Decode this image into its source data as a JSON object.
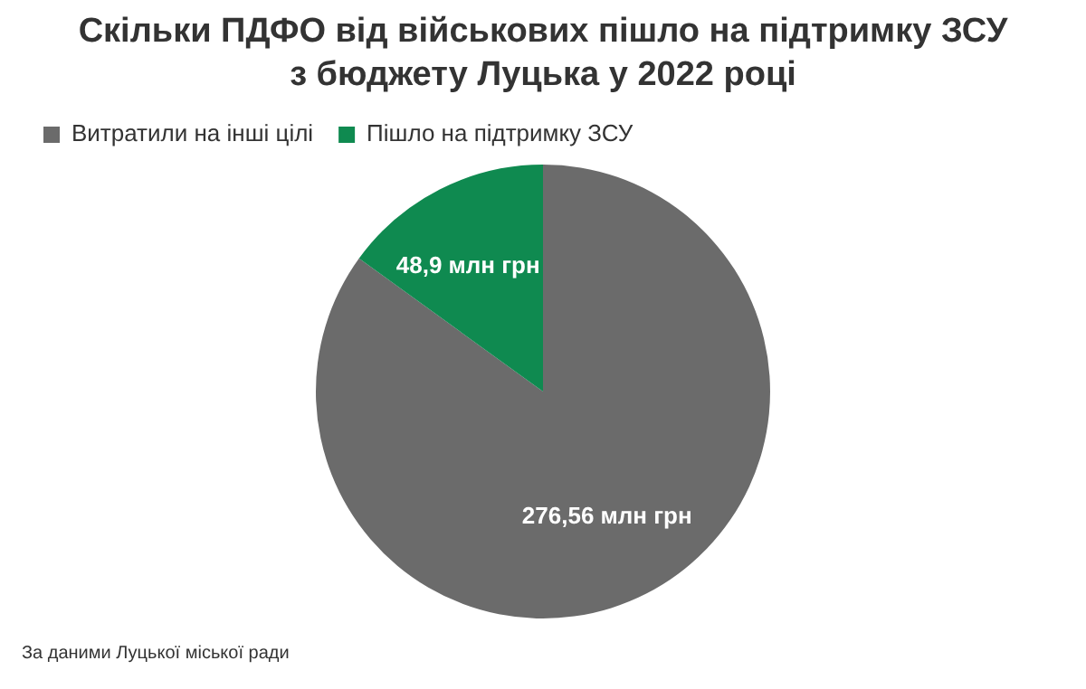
{
  "chart_data": {
    "type": "pie",
    "title": "Скільки ПДФО від військових пішло на підтримку ЗСУ з бюджету Луцька у 2022 році",
    "categories": [
      "Витратили на інші цілі",
      "Пішло на підтримку ЗСУ"
    ],
    "values": [
      276.56,
      48.9
    ],
    "value_labels": [
      "276,56 млн грн",
      "48,9 млн грн"
    ],
    "colors": [
      "#6b6b6b",
      "#0f8a50"
    ],
    "legend": "top left",
    "annotations": [
      "За даними Луцької міської ради"
    ]
  }
}
